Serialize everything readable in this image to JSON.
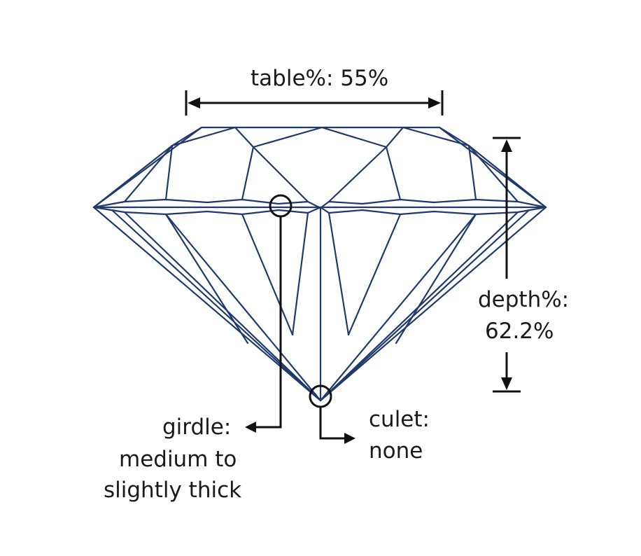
{
  "labels": {
    "table": "table%: 55%",
    "depth_line1": "depth%:",
    "depth_line2": "62.2%",
    "girdle_line1": "girdle:",
    "girdle_line2": "medium to",
    "girdle_line3": "slightly thick",
    "culet_line1": "culet:",
    "culet_line2": "none"
  },
  "colors": {
    "facet_lines": "#1f3a6b",
    "annotation": "#111111",
    "background": "#ffffff"
  }
}
